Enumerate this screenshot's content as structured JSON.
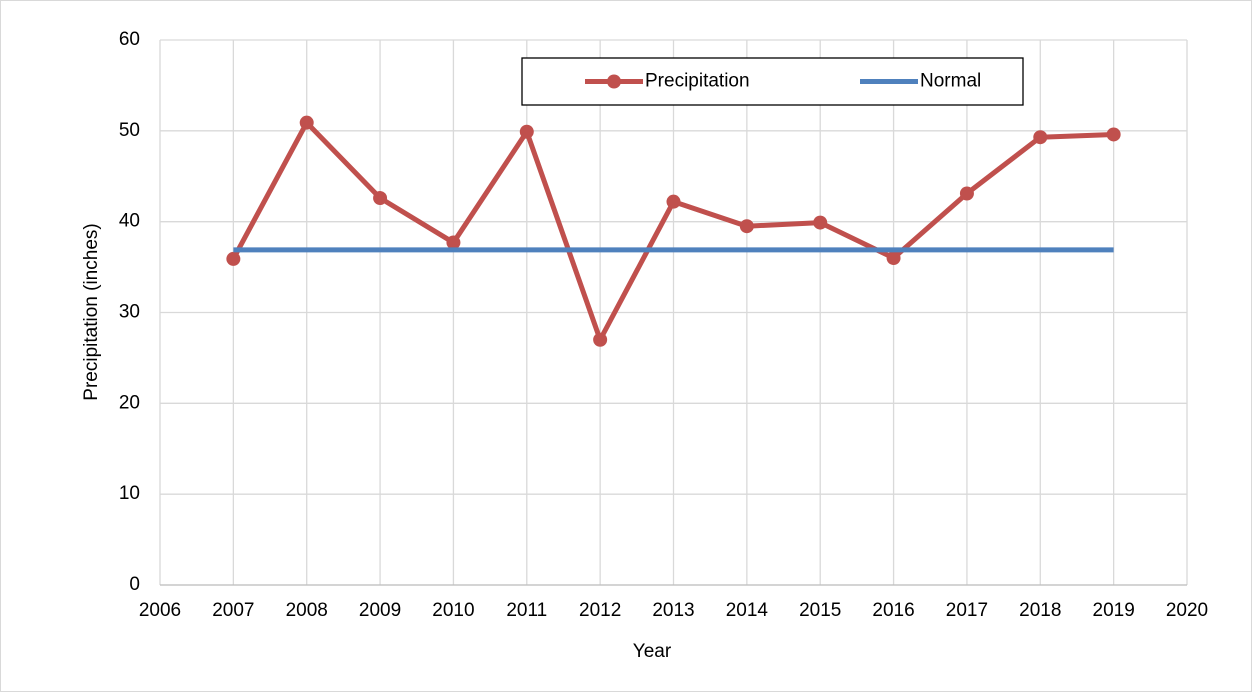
{
  "chart_data": {
    "type": "line",
    "x_label": "Year",
    "y_label": "Precipitation (inches)",
    "x": [
      2007,
      2008,
      2009,
      2010,
      2011,
      2012,
      2013,
      2014,
      2015,
      2016,
      2017,
      2018,
      2019
    ],
    "series": [
      {
        "name": "Precipitation",
        "color": "#c0504d",
        "markers": true,
        "values": [
          35.9,
          50.9,
          42.6,
          37.7,
          49.9,
          27.0,
          42.2,
          39.5,
          39.9,
          36.0,
          43.1,
          49.3,
          49.6
        ]
      },
      {
        "name": "Normal",
        "color": "#4f81bd",
        "markers": false,
        "values": [
          36.9,
          36.9,
          36.9,
          36.9,
          36.9,
          36.9,
          36.9,
          36.9,
          36.9,
          36.9,
          36.9,
          36.9,
          36.9
        ]
      }
    ],
    "xlim": [
      2006,
      2020
    ],
    "xticks": [
      2006,
      2007,
      2008,
      2009,
      2010,
      2011,
      2012,
      2013,
      2014,
      2015,
      2016,
      2017,
      2018,
      2019,
      2020
    ],
    "ylim": [
      0,
      60
    ],
    "yticks": [
      0,
      10,
      20,
      30,
      40,
      50,
      60
    ],
    "grid": true,
    "legend": "top"
  }
}
